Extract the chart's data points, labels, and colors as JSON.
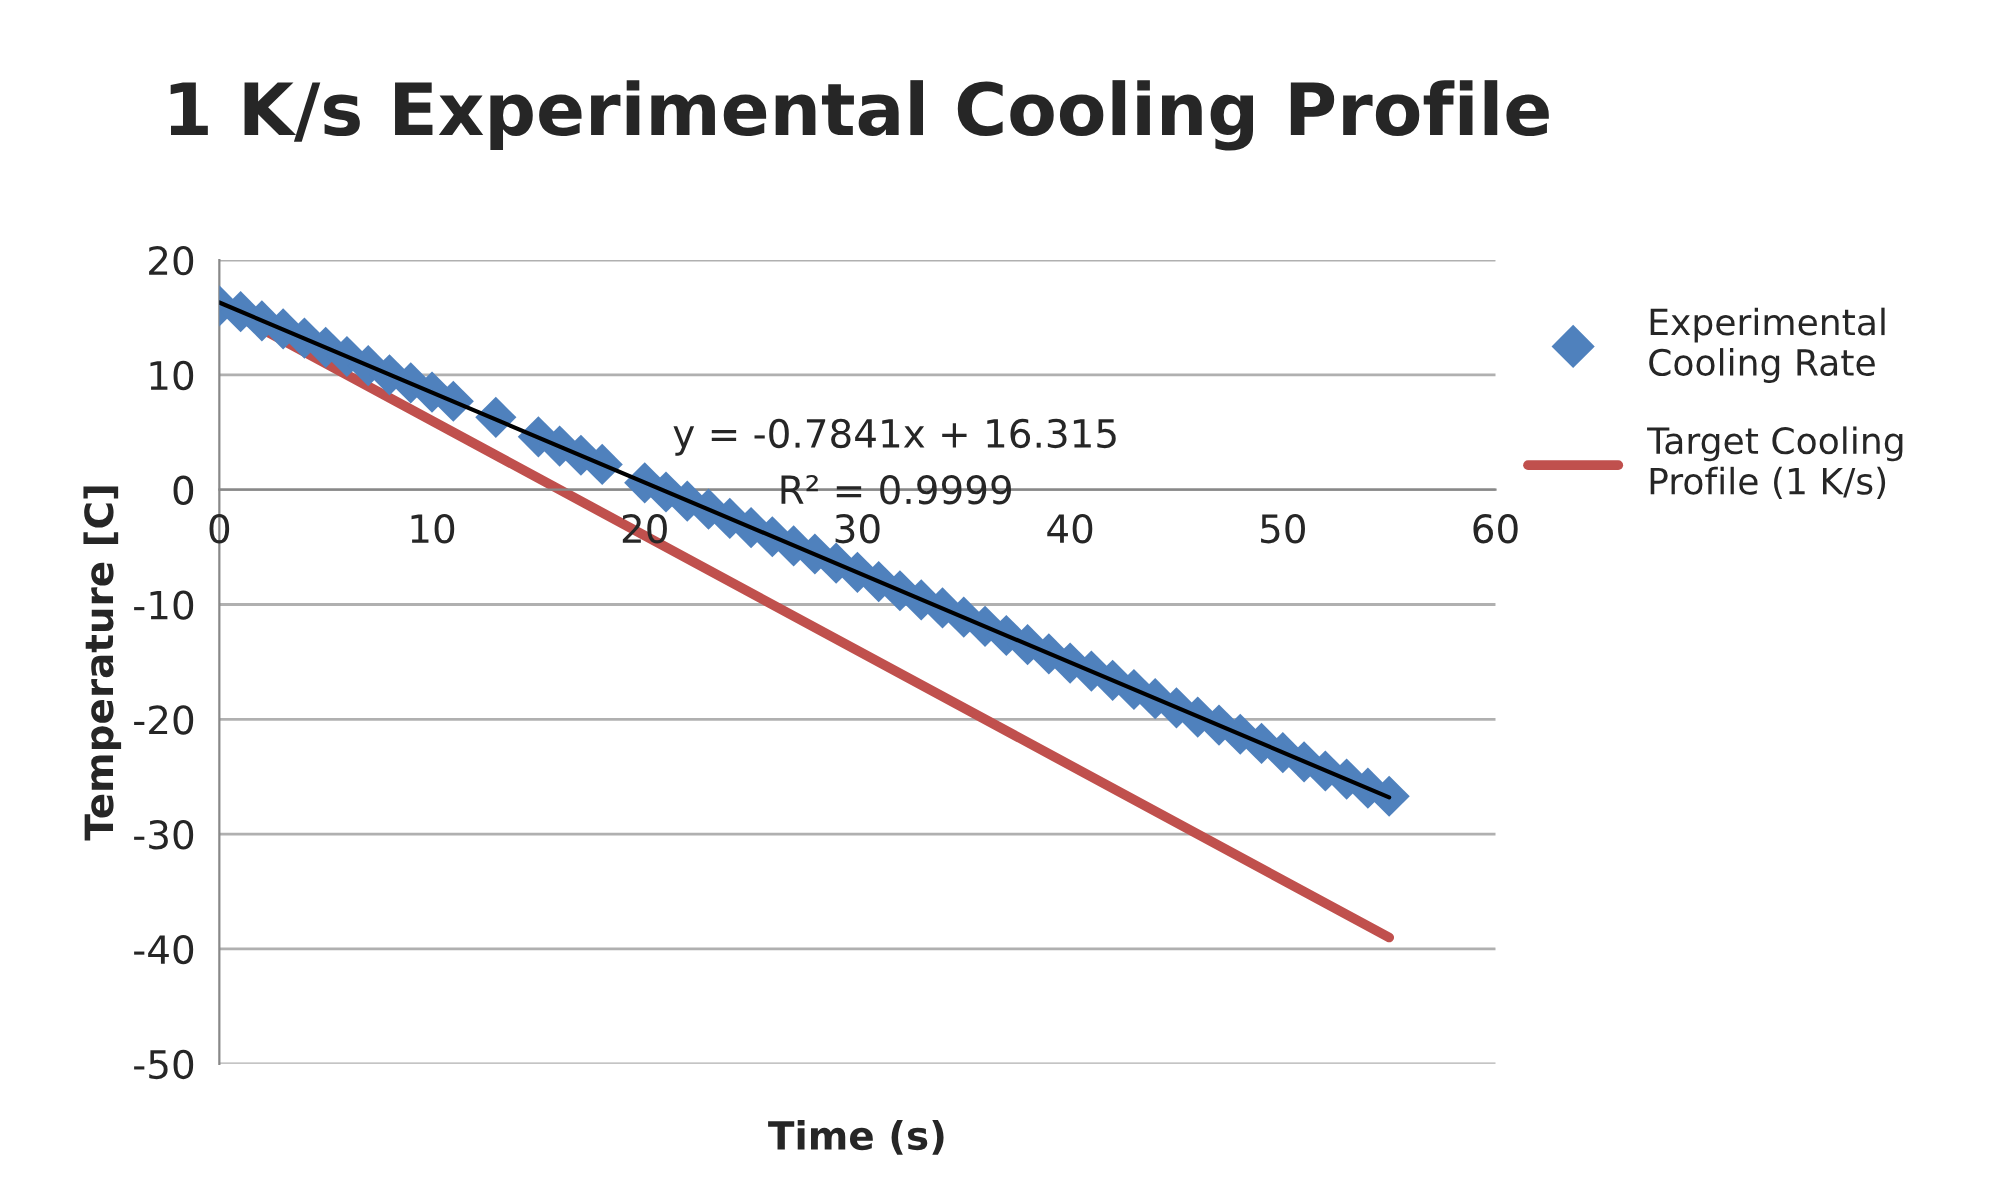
{
  "chart_data": {
    "type": "scatter",
    "title": "1 K/s Experimental Cooling Profile",
    "xlabel": "Time (s)",
    "ylabel": "Temperature [C]",
    "series": [
      {
        "name": "Experimental Cooling Rate",
        "color": "#4f81bd",
        "marker": "diamond",
        "x": [
          0,
          1,
          2,
          3,
          4,
          5,
          6,
          7,
          8,
          9,
          10,
          11,
          13,
          15,
          16,
          17,
          18,
          20,
          21,
          22,
          23,
          24,
          25,
          26,
          27,
          28,
          29,
          30,
          31,
          32,
          33,
          34,
          35,
          36,
          37,
          38,
          39,
          40,
          41,
          42,
          43,
          44,
          45,
          46,
          47,
          48,
          49,
          50,
          51,
          52,
          53,
          54,
          55
        ],
        "values": [
          16.0,
          15.5,
          14.7,
          14.0,
          13.2,
          12.4,
          11.6,
          10.8,
          10.0,
          9.3,
          8.5,
          7.7,
          6.3,
          4.6,
          3.8,
          3.0,
          2.2,
          0.6,
          -0.2,
          -1.0,
          -1.7,
          -2.5,
          -3.3,
          -4.1,
          -4.9,
          -5.6,
          -6.4,
          -7.2,
          -8.0,
          -8.8,
          -9.6,
          -10.3,
          -11.1,
          -11.9,
          -12.7,
          -13.5,
          -14.3,
          -15.1,
          -15.8,
          -16.6,
          -17.4,
          -18.2,
          -19.0,
          -19.8,
          -20.5,
          -21.3,
          -22.1,
          -22.9,
          -23.7,
          -24.5,
          -25.2,
          -26.0,
          -26.7
        ]
      },
      {
        "name": "Target Cooling Profile (1 K/s)",
        "type": "line",
        "color": "#c0504d",
        "x": [
          0,
          55
        ],
        "values": [
          16,
          -39
        ]
      },
      {
        "type": "line",
        "color": "#000000",
        "x": [
          0,
          55
        ],
        "values": [
          16.3,
          -26.8
        ]
      }
    ],
    "annotations": [
      "y = -0.7841x + 16.315",
      "R² = 0.9999"
    ],
    "xlim": [
      0,
      60
    ],
    "xticks": [
      0,
      10,
      20,
      30,
      40,
      50,
      60
    ],
    "ylim": [
      -50,
      20
    ],
    "yticks": [
      -50,
      -40,
      -30,
      -20,
      -10,
      0,
      10,
      20
    ],
    "grid": "y",
    "legend": "right"
  }
}
